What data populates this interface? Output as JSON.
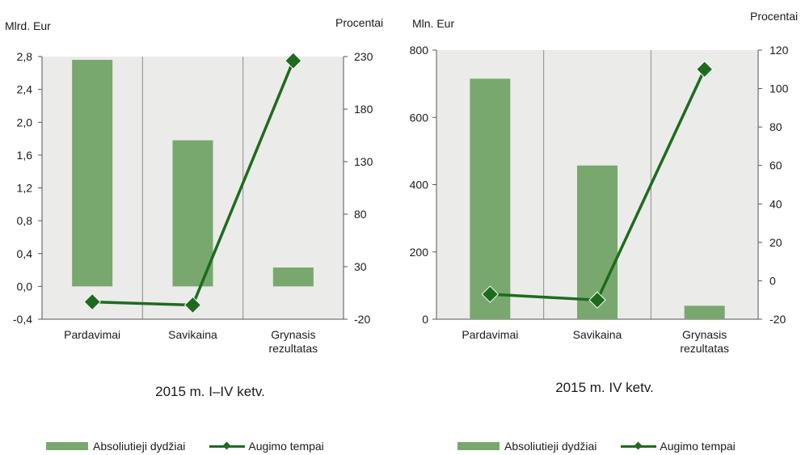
{
  "colors": {
    "bar": "#78a86e",
    "line": "#1e6b1e",
    "marker": "#1e6b1e",
    "plot_bg": "#ebebe9",
    "grid": "#8c8c8c"
  },
  "chart_data": [
    {
      "type": "bar",
      "title": "2015 m. I–IV ketv.",
      "ylabel_left": "Mlrd. Eur",
      "ylabel_right": "Procentai",
      "categories": [
        "Pardavimai",
        "Savikaina",
        "Grynasis\nrezultatas"
      ],
      "left_axis": {
        "ylim": [
          -0.4,
          2.8
        ],
        "ticks": [
          "-0,4",
          "0,0",
          "0,4",
          "0,8",
          "1,2",
          "1,6",
          "2,0",
          "2,4",
          "2,8"
        ],
        "tick_values": [
          -0.4,
          0,
          0.4,
          0.8,
          1.2,
          1.6,
          2.0,
          2.4,
          2.8
        ]
      },
      "right_axis": {
        "ylim": [
          -20,
          230
        ],
        "ticks": [
          "-20",
          "30",
          "80",
          "130",
          "180",
          "230"
        ],
        "tick_values": [
          -20,
          30,
          80,
          130,
          180,
          230
        ]
      },
      "series": [
        {
          "name": "Absoliutieji dydžiai",
          "type": "bar",
          "axis": "left",
          "values": [
            2.76,
            1.78,
            0.23
          ]
        },
        {
          "name": "Augimo tempai",
          "type": "line",
          "axis": "right",
          "values": [
            -3.5,
            -6.5,
            226
          ]
        }
      ],
      "grid": true,
      "legend": "bottom"
    },
    {
      "type": "bar",
      "title": "2015 m. IV ketv.",
      "ylabel_left": "Mln. Eur",
      "ylabel_right": "Procentai",
      "categories": [
        "Pardavimai",
        "Savikaina",
        "Grynasis\nrezultatas"
      ],
      "left_axis": {
        "ylim": [
          0,
          800
        ],
        "ticks": [
          "0",
          "200",
          "400",
          "600",
          "800"
        ],
        "tick_values": [
          0,
          200,
          400,
          600,
          800
        ]
      },
      "right_axis": {
        "ylim": [
          -20,
          120
        ],
        "ticks": [
          "-20",
          "0",
          "20",
          "40",
          "60",
          "80",
          "100",
          "120"
        ],
        "tick_values": [
          -20,
          0,
          20,
          40,
          60,
          80,
          100,
          120
        ]
      },
      "series": [
        {
          "name": "Absoliutieji dydžiai",
          "type": "bar",
          "axis": "left",
          "values": [
            715,
            457,
            40
          ]
        },
        {
          "name": "Augimo tempai",
          "type": "line",
          "axis": "right",
          "values": [
            -7,
            -10,
            110
          ]
        }
      ],
      "grid": true,
      "legend": "bottom"
    }
  ]
}
